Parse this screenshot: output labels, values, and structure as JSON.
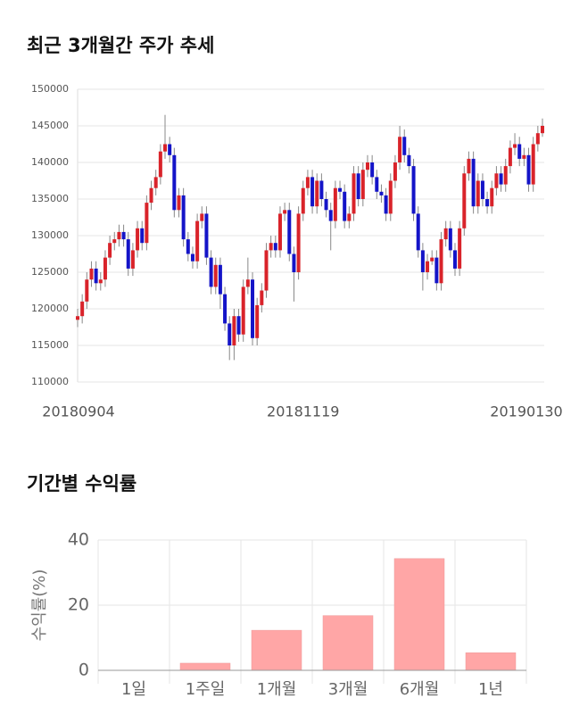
{
  "chart_data": [
    {
      "type": "candlestick",
      "title": "최근 3개월간 주가 추세",
      "categories": [
        "20180904",
        null,
        null,
        null,
        null,
        null,
        null,
        null,
        null,
        null,
        null,
        null,
        null,
        null,
        null,
        null,
        null,
        null,
        null,
        null,
        null,
        null,
        null,
        null,
        null,
        null,
        null,
        null,
        null,
        null,
        null,
        null,
        null,
        null,
        null,
        null,
        null,
        null,
        null,
        null,
        null,
        null,
        null,
        null,
        null,
        null,
        null,
        null,
        null,
        "20181119",
        null,
        null,
        null,
        null,
        null,
        null,
        null,
        null,
        null,
        null,
        null,
        null,
        null,
        null,
        null,
        null,
        null,
        null,
        null,
        null,
        null,
        null,
        null,
        null,
        null,
        null,
        null,
        null,
        null,
        null,
        null,
        null,
        null,
        null,
        null,
        null,
        null,
        null,
        null,
        null,
        null,
        null,
        null,
        null,
        null,
        null,
        null,
        null,
        null,
        null,
        null,
        "20190130"
      ],
      "open": [
        118500,
        119000,
        121000,
        124000,
        125500,
        123500,
        124000,
        127000,
        129000,
        129500,
        130500,
        129500,
        125500,
        128000,
        131000,
        129000,
        134500,
        136500,
        138000,
        141500,
        142500,
        141000,
        133500,
        135500,
        129500,
        127500,
        126500,
        132000,
        133000,
        127000,
        123000,
        126000,
        122000,
        118000,
        115000,
        119000,
        116500,
        123000,
        124000,
        116000,
        120500,
        122500,
        128000,
        129000,
        128000,
        133000,
        133500,
        127500,
        125000,
        133000,
        136500,
        138000,
        134000,
        137500,
        135000,
        133500,
        132000,
        136500,
        136000,
        132000,
        133000,
        138500,
        135000,
        139000,
        140000,
        138000,
        136000,
        135500,
        133000,
        137500,
        140000,
        143500,
        141000,
        139500,
        133000,
        128000,
        125000,
        126500,
        127000,
        123500,
        129500,
        131000,
        128000,
        125500,
        131000,
        138500,
        140500,
        134000,
        137500,
        135000,
        134000,
        136500,
        138500,
        137000,
        139500,
        142000,
        142500,
        140500,
        141000,
        137000,
        142500,
        144000
      ],
      "high": [
        120000,
        122000,
        125000,
        126500,
        126500,
        125000,
        128000,
        130000,
        130500,
        131500,
        131500,
        130500,
        129000,
        132000,
        132000,
        135500,
        137500,
        139000,
        142500,
        146500,
        143500,
        142000,
        136500,
        136500,
        130500,
        128500,
        133000,
        134000,
        134000,
        128000,
        127000,
        127000,
        123000,
        119000,
        120000,
        120000,
        124000,
        127000,
        125000,
        121500,
        123500,
        129000,
        130000,
        130000,
        134000,
        134500,
        134500,
        128500,
        134000,
        137500,
        139000,
        139000,
        138500,
        138500,
        136000,
        134500,
        137500,
        137500,
        137000,
        134000,
        139500,
        139500,
        140000,
        141000,
        141000,
        139000,
        137000,
        136500,
        138500,
        141000,
        145000,
        144500,
        142000,
        140500,
        134000,
        129000,
        127500,
        128000,
        128000,
        130500,
        132000,
        132000,
        129000,
        132000,
        139500,
        141500,
        141500,
        138500,
        138500,
        136000,
        137500,
        139500,
        139500,
        140500,
        143000,
        144000,
        143500,
        142000,
        142000,
        143500,
        145000,
        146000
      ],
      "low": [
        117500,
        118000,
        120000,
        123000,
        122500,
        122500,
        123000,
        126000,
        128000,
        128500,
        128500,
        124500,
        124500,
        127000,
        128000,
        128000,
        133500,
        135500,
        137000,
        140500,
        140000,
        132500,
        132500,
        128500,
        126500,
        125500,
        125500,
        131000,
        126000,
        122000,
        122000,
        120000,
        117000,
        113000,
        113000,
        115500,
        115500,
        122000,
        115000,
        115000,
        119500,
        121500,
        127000,
        127000,
        127000,
        132000,
        126500,
        121000,
        124000,
        132000,
        135500,
        133000,
        133000,
        134000,
        132500,
        128000,
        131000,
        135000,
        131000,
        131000,
        132000,
        134000,
        134000,
        138000,
        137000,
        135000,
        134500,
        132000,
        132000,
        136500,
        139000,
        140000,
        138500,
        132000,
        127000,
        122500,
        124000,
        126000,
        122500,
        122500,
        128500,
        127000,
        124500,
        124500,
        130000,
        137500,
        133000,
        133000,
        134000,
        133000,
        133000,
        135500,
        136000,
        136000,
        138500,
        141000,
        139500,
        139500,
        136000,
        136000,
        141500,
        143500
      ],
      "close": [
        119000,
        121000,
        124000,
        125500,
        123500,
        124000,
        127000,
        129000,
        129500,
        130500,
        129500,
        125500,
        128000,
        131000,
        129000,
        134500,
        136500,
        138000,
        141500,
        142500,
        141000,
        133500,
        135500,
        129500,
        127500,
        126500,
        132000,
        133000,
        127000,
        123000,
        126000,
        122000,
        118000,
        115000,
        119000,
        116500,
        123000,
        124000,
        116000,
        120500,
        122500,
        128000,
        129000,
        128000,
        133000,
        133500,
        127500,
        125000,
        133000,
        136500,
        138000,
        134000,
        137500,
        135000,
        133500,
        132000,
        136500,
        136000,
        132000,
        133000,
        138500,
        135000,
        139000,
        140000,
        138000,
        136000,
        135500,
        133000,
        137500,
        140000,
        143500,
        141000,
        139500,
        133000,
        128000,
        125000,
        126500,
        127000,
        123500,
        129500,
        131000,
        128000,
        125500,
        131000,
        138500,
        140500,
        134000,
        137500,
        135000,
        134000,
        136500,
        138500,
        137000,
        139500,
        142000,
        142500,
        140500,
        141000,
        137000,
        142500,
        144000,
        145000
      ],
      "up_color": "#d9232a",
      "down_color": "#1414c8",
      "ylim": [
        110000,
        150000
      ],
      "yticks": [
        110000,
        115000,
        120000,
        125000,
        130000,
        135000,
        140000,
        145000,
        150000
      ],
      "grid": true
    },
    {
      "type": "bar",
      "title": "기간별 수익률",
      "ylabel": "수익률(%)",
      "categories": [
        "1일",
        "1주일",
        "1개월",
        "3개월",
        "6개월",
        "1년"
      ],
      "values": [
        0,
        2.2,
        12.3,
        16.8,
        34.3,
        5.4
      ],
      "color": "#ffa6a6",
      "ylim": [
        0,
        40
      ],
      "yticks": [
        0,
        20,
        40
      ],
      "grid": true
    }
  ]
}
